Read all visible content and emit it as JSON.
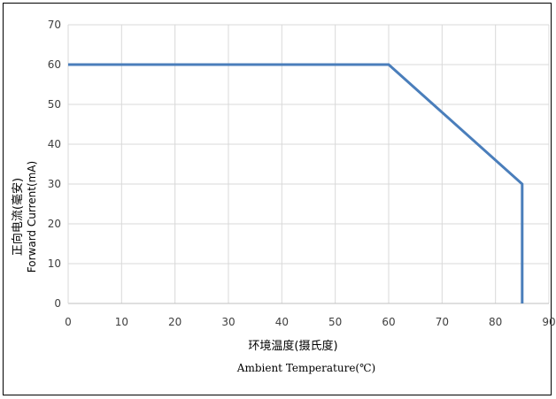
{
  "chart_data": {
    "type": "line",
    "title": "",
    "xlabel_cn": "环境温度(摄氏度)",
    "xlabel_en": "Ambient Temperature(℃)",
    "ylabel_cn": "正向电流(毫安)",
    "ylabel_en": "Forward Current(mA)",
    "xlim": [
      0,
      90
    ],
    "ylim": [
      0,
      70
    ],
    "x_ticks": [
      0,
      10,
      20,
      30,
      40,
      50,
      60,
      70,
      80,
      90
    ],
    "y_ticks": [
      0,
      10,
      20,
      30,
      40,
      50,
      60,
      70
    ],
    "grid": true,
    "series": [
      {
        "x": [
          0,
          60,
          85,
          85
        ],
        "y": [
          60,
          60,
          30,
          0
        ],
        "color": "#4a7ebb"
      }
    ]
  }
}
